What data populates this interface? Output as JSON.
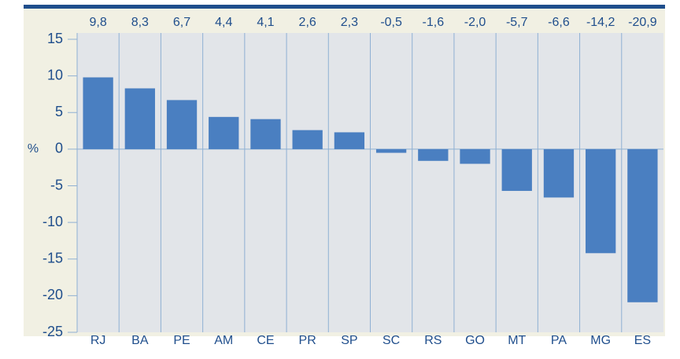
{
  "chart_data": {
    "type": "bar",
    "y_label": "%",
    "categories": [
      "RJ",
      "BA",
      "PE",
      "AM",
      "CE",
      "PR",
      "SP",
      "SC",
      "RS",
      "GO",
      "MT",
      "PA",
      "MG",
      "ES"
    ],
    "values": [
      9.8,
      8.3,
      6.7,
      4.4,
      4.1,
      2.6,
      2.3,
      -0.5,
      -1.6,
      -2.0,
      -5.7,
      -6.6,
      -14.2,
      -20.9
    ],
    "value_labels": [
      "9,8",
      "8,3",
      "6,7",
      "4,4",
      "4,1",
      "2,6",
      "2,3",
      "-0,5",
      "-1,6",
      "-2,0",
      "-5,7",
      "-6,6",
      "-14,2",
      "-20,9"
    ],
    "color": "#4a7fc1",
    "ylim": [
      -25,
      15
    ],
    "yticks": [
      15,
      10,
      5,
      0,
      -5,
      -10,
      -15,
      -20,
      -25
    ],
    "grid": false
  }
}
